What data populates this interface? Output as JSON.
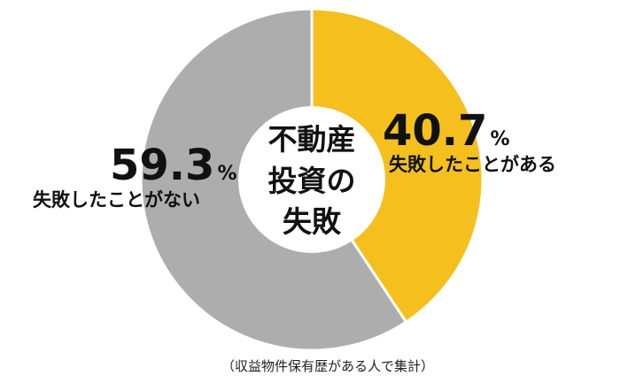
{
  "chart_data": {
    "type": "pie",
    "style": "donut",
    "title_lines": [
      "不動産",
      "投資の",
      "失敗"
    ],
    "slices": [
      {
        "label": "失敗したことがある",
        "value": 40.7,
        "unit": "%",
        "color": "#F5C01E"
      },
      {
        "label": "失敗したことがない",
        "value": 59.3,
        "unit": "%",
        "color": "#ADADAD"
      }
    ],
    "footnote": "（収益物件保有歴がある人で集計）"
  }
}
